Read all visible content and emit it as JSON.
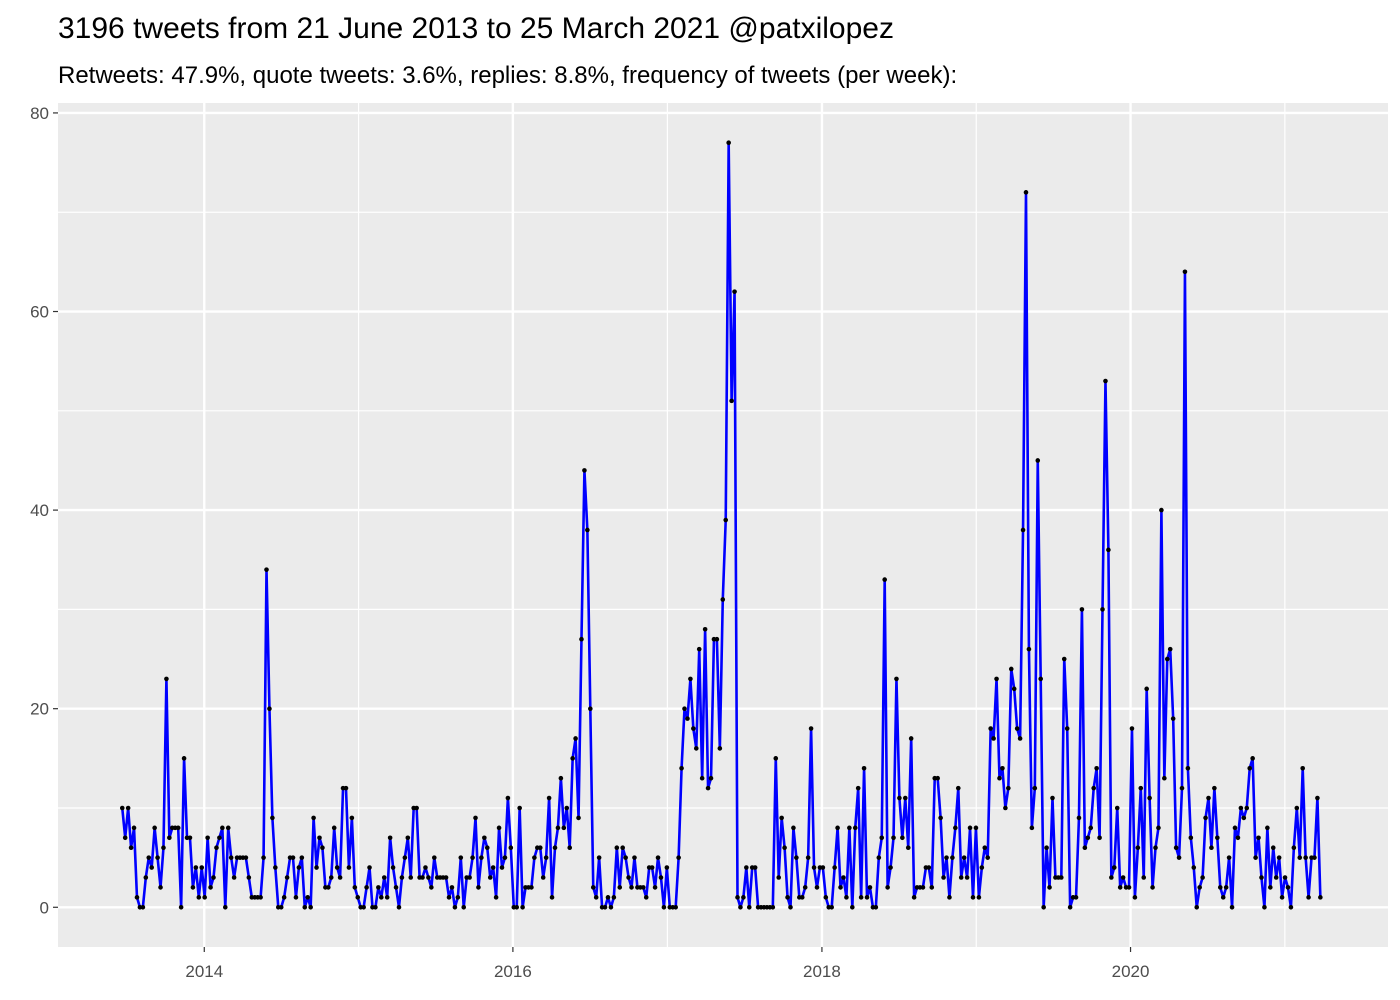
{
  "chart_data": {
    "type": "line",
    "title": "3196 tweets from 21 June 2013 to 25 March 2021 @patxilopez",
    "subtitle": "Retweets: 47.9%, quote tweets: 3.6%, replies: 8.8%, frequency of tweets (per week):",
    "xlabel": "",
    "ylabel": "",
    "x_range": [
      "2013-01-20",
      "2021-09-01"
    ],
    "ylim": [
      -4,
      81
    ],
    "x_ticks": [
      {
        "label": "2014",
        "date": "2014-01-01"
      },
      {
        "label": "2016",
        "date": "2016-01-01"
      },
      {
        "label": "2018",
        "date": "2018-01-01"
      },
      {
        "label": "2020",
        "date": "2020-01-01"
      }
    ],
    "y_ticks": [
      0,
      20,
      40,
      60,
      80
    ],
    "grid": true,
    "legend": "none",
    "line_color": "#0000ff",
    "point_color": "#000000",
    "panel_background": "#ebebeb",
    "start_date": "2013-06-21",
    "end_date": "2021-03-25",
    "series": [
      {
        "values": [
          10,
          7,
          10,
          6,
          8,
          1,
          0,
          0,
          3,
          5,
          4,
          8,
          5,
          2,
          6,
          23,
          7,
          8,
          8,
          8,
          0,
          15,
          7,
          7,
          2,
          4,
          1,
          4,
          1,
          7,
          2,
          3,
          6,
          7,
          8,
          0,
          8,
          5,
          3,
          5,
          5,
          5,
          5,
          3,
          1,
          1,
          1,
          1,
          5,
          34,
          20,
          9,
          4,
          0,
          0,
          1,
          3,
          5,
          5,
          1,
          4,
          5,
          0,
          1,
          0,
          9,
          4,
          7,
          6,
          2,
          2,
          3,
          8,
          4,
          3,
          12,
          12,
          4,
          9,
          2,
          1,
          0,
          0,
          2,
          4,
          0,
          0,
          2,
          1,
          3,
          1,
          7,
          4,
          2,
          0,
          3,
          5,
          7,
          3,
          10,
          10,
          3,
          3,
          4,
          3,
          2,
          5,
          3,
          3,
          3,
          3,
          1,
          2,
          0,
          1,
          5,
          0,
          3,
          3,
          5,
          9,
          2,
          5,
          7,
          6,
          3,
          4,
          1,
          8,
          4,
          5,
          11,
          6,
          0,
          0,
          10,
          0,
          2,
          2,
          2,
          5,
          6,
          6,
          3,
          5,
          11,
          1,
          6,
          8,
          13,
          8,
          10,
          6,
          15,
          17,
          9,
          27,
          44,
          38,
          20,
          2,
          1,
          5,
          0,
          0,
          1,
          0,
          1,
          6,
          2,
          6,
          5,
          3,
          2,
          5,
          2,
          2,
          2,
          1,
          4,
          4,
          2,
          5,
          3,
          0,
          4,
          0,
          0,
          0,
          5,
          14,
          20,
          19,
          23,
          18,
          16,
          26,
          13,
          28,
          12,
          13,
          27,
          27,
          16,
          31,
          39,
          77,
          51,
          62,
          1,
          0,
          1,
          4,
          0,
          4,
          4,
          0,
          0,
          0,
          0,
          0,
          0,
          15,
          3,
          9,
          6,
          1,
          0,
          8,
          5,
          1,
          1,
          2,
          5,
          18,
          4,
          2,
          4,
          4,
          1,
          0,
          0,
          4,
          8,
          2,
          3,
          1,
          8,
          0,
          8,
          12,
          1,
          14,
          1,
          2,
          0,
          0,
          5,
          7,
          33,
          2,
          4,
          7,
          23,
          11,
          7,
          11,
          6,
          17,
          1,
          2,
          2,
          2,
          4,
          4,
          2,
          13,
          13,
          9,
          3,
          5,
          1,
          5,
          8,
          12,
          3,
          5,
          3,
          8,
          1,
          8,
          1,
          4,
          6,
          5,
          18,
          17,
          23,
          13,
          14,
          10,
          12,
          24,
          22,
          18,
          17,
          38,
          72,
          26,
          8,
          12,
          45,
          23,
          0,
          6,
          2,
          11,
          3,
          3,
          3,
          25,
          18,
          0,
          1,
          1,
          9,
          30,
          6,
          7,
          8,
          12,
          14,
          7,
          30,
          53,
          36,
          3,
          4,
          10,
          2,
          3,
          2,
          2,
          18,
          1,
          6,
          12,
          3,
          22,
          11,
          2,
          6,
          8,
          40,
          13,
          25,
          26,
          19,
          6,
          5,
          12,
          64,
          14,
          7,
          4,
          0,
          2,
          3,
          9,
          11,
          6,
          12,
          7,
          2,
          1,
          2,
          5,
          0,
          8,
          7,
          10,
          9,
          10,
          14,
          15,
          5,
          7,
          3,
          0,
          8,
          2,
          6,
          3,
          5,
          1,
          3,
          2,
          0,
          6,
          10,
          5,
          14,
          5,
          1,
          5,
          5,
          11,
          1
        ]
      }
    ]
  }
}
